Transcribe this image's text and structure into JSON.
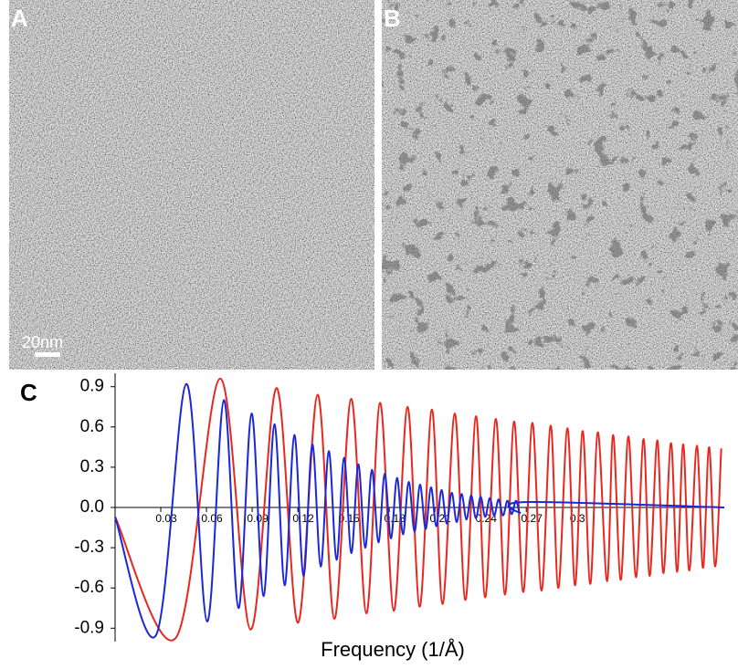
{
  "panels": [
    {
      "label": "A",
      "scale_bar": "20nm"
    },
    {
      "label": "B"
    }
  ],
  "chart_data": {
    "type": "line",
    "panel_label": "C",
    "x_label": "Frequency (1/Å)",
    "xlim": [
      0,
      0.4
    ],
    "ylim": [
      -1,
      1
    ],
    "xticks": [
      0.03,
      0.06,
      0.09,
      0.12,
      0.15,
      0.18,
      0.21,
      0.24,
      0.27,
      0.3
    ],
    "yticks": [
      0.9,
      0.6,
      0.3,
      {
        "value": 0,
        "label": "0.0"
      },
      -0.3,
      -0.6,
      -0.9
    ],
    "series": [
      {
        "color": "#e8281e",
        "x": [
          0,
          0.04,
          0.069,
          0.089,
          0.106,
          0.12,
          0.133,
          0.144,
          0.155,
          0.165,
          0.174,
          0.183,
          0.192,
          0.2,
          0.208,
          0.215,
          0.223,
          0.23,
          0.237,
          0.243,
          0.25,
          0.256,
          0.262,
          0.268,
          0.274,
          0.28,
          0.286,
          0.291,
          0.297,
          0.302,
          0.307,
          0.312,
          0.317,
          0.323,
          0.327,
          0.332,
          0.337,
          0.342,
          0.347,
          0.351,
          0.356,
          0.36,
          0.365,
          0.369,
          0.373,
          0.377,
          0.382,
          0.386,
          0.39,
          0.394,
          0.398
        ],
        "values": [
          -0.07,
          -0.97,
          0.96,
          -0.91,
          0.89,
          -0.86,
          0.84,
          -0.83,
          0.81,
          -0.79,
          0.78,
          -0.77,
          0.75,
          -0.74,
          0.73,
          -0.72,
          0.7,
          -0.69,
          0.68,
          -0.67,
          0.66,
          -0.65,
          0.64,
          -0.63,
          0.63,
          -0.62,
          0.61,
          -0.6,
          0.59,
          -0.58,
          0.57,
          -0.57,
          0.56,
          -0.55,
          0.54,
          -0.54,
          0.53,
          -0.52,
          0.51,
          -0.51,
          0.5,
          -0.49,
          0.48,
          -0.48,
          0.47,
          -0.47,
          0.46,
          -0.45,
          0.45,
          -0.44,
          0.44
        ]
      },
      {
        "color": "#1a28d8",
        "x": [
          0,
          0.027,
          0.0468,
          0.0604,
          0.0714,
          0.081,
          0.0896,
          0.0974,
          0.1046,
          0.1113,
          0.1177,
          0.1237,
          0.1295,
          0.135,
          0.1403,
          0.1454,
          0.1503,
          0.1551,
          0.1597,
          0.1642,
          0.1686,
          0.1729,
          0.177,
          0.1811,
          0.1851,
          0.189,
          0.1928,
          0.1966,
          0.2002,
          0.2039,
          0.2074,
          0.2109,
          0.2143,
          0.2177,
          0.221,
          0.2243,
          0.2275,
          0.2307,
          0.2338,
          0.2369,
          0.24,
          0.243,
          0.246,
          0.2489,
          0.2518,
          0.2547,
          0.2576,
          0.2604,
          0.2632,
          0.2659,
          0.2687,
          0.4
        ],
        "values": [
          -0.07,
          -0.95,
          0.92,
          -0.85,
          0.8,
          -0.75,
          0.7,
          -0.66,
          0.62,
          -0.58,
          0.54,
          -0.51,
          0.47,
          -0.44,
          0.42,
          -0.39,
          0.37,
          -0.34,
          0.32,
          -0.3,
          0.28,
          -0.26,
          0.25,
          -0.23,
          0.22,
          -0.2,
          0.19,
          -0.18,
          0.17,
          -0.16,
          0.15,
          -0.14,
          0.13,
          -0.12,
          0.11,
          -0.11,
          0.1,
          -0.09,
          0.09,
          -0.08,
          0.08,
          -0.07,
          0.07,
          -0.06,
          0.06,
          -0.06,
          0.05,
          -0.05,
          0.05,
          -0.04,
          0.04,
          0
        ]
      }
    ]
  }
}
